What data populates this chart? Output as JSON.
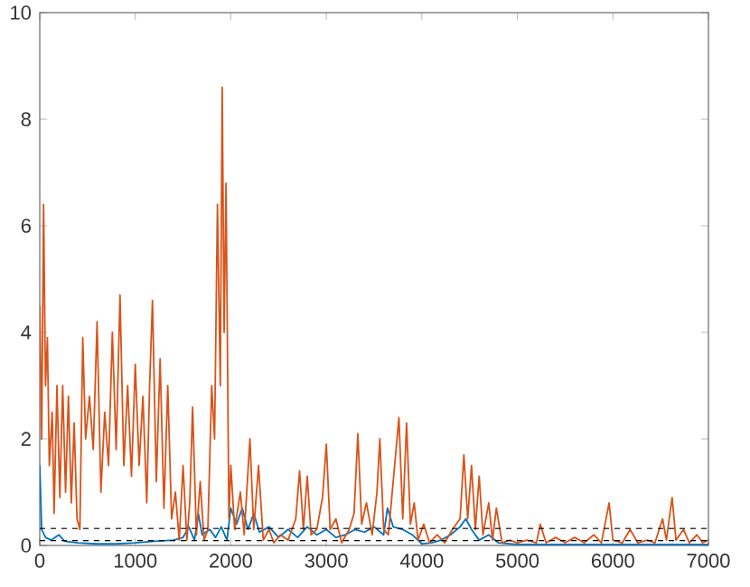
{
  "chart_data": {
    "type": "line",
    "xlim": [
      0,
      7000
    ],
    "ylim": [
      0,
      10
    ],
    "xticks": [
      0,
      1000,
      2000,
      3000,
      4000,
      5000,
      6000,
      7000
    ],
    "yticks": [
      0,
      2,
      4,
      6,
      8,
      10
    ],
    "grid": false,
    "marker": "none",
    "line_style": "solid",
    "series": [
      {
        "color": "#0072bd",
        "x": [
          0,
          20,
          60,
          120,
          200,
          260,
          400,
          600,
          800,
          1000,
          1200,
          1400,
          1500,
          1560,
          1620,
          1660,
          1700,
          1780,
          1840,
          1900,
          1960,
          2000,
          2060,
          2120,
          2180,
          2240,
          2300,
          2400,
          2500,
          2600,
          2700,
          2800,
          2900,
          3000,
          3100,
          3200,
          3300,
          3400,
          3500,
          3600,
          3640,
          3700,
          3800,
          3900,
          4000,
          4100,
          4200,
          4300,
          4400,
          4460,
          4520,
          4600,
          4700,
          4800,
          5000,
          5500,
          6000,
          6500,
          7000
        ],
        "values": [
          1.5,
          0.3,
          0.15,
          0.1,
          0.2,
          0.08,
          0.05,
          0.03,
          0.03,
          0.05,
          0.08,
          0.1,
          0.15,
          0.35,
          0.1,
          0.6,
          0.2,
          0.3,
          0.15,
          0.35,
          0.1,
          0.7,
          0.4,
          0.7,
          0.3,
          0.6,
          0.25,
          0.35,
          0.15,
          0.3,
          0.15,
          0.35,
          0.2,
          0.3,
          0.15,
          0.2,
          0.3,
          0.25,
          0.35,
          0.2,
          0.7,
          0.35,
          0.3,
          0.2,
          0.03,
          0.05,
          0.1,
          0.2,
          0.35,
          0.5,
          0.3,
          0.1,
          0.2,
          0.05,
          0.02,
          0.02,
          0.02,
          0.02,
          0.02
        ]
      },
      {
        "color": "#d95319",
        "x": [
          0,
          20,
          40,
          60,
          80,
          100,
          130,
          150,
          180,
          210,
          240,
          270,
          300,
          330,
          360,
          390,
          420,
          450,
          480,
          520,
          560,
          600,
          640,
          680,
          720,
          760,
          800,
          840,
          880,
          920,
          960,
          1000,
          1040,
          1080,
          1120,
          1150,
          1180,
          1220,
          1260,
          1300,
          1340,
          1380,
          1420,
          1460,
          1500,
          1540,
          1570,
          1600,
          1640,
          1680,
          1720,
          1760,
          1800,
          1830,
          1860,
          1890,
          1910,
          1930,
          1950,
          1980,
          2000,
          2040,
          2100,
          2140,
          2200,
          2240,
          2290,
          2340,
          2400,
          2450,
          2520,
          2600,
          2680,
          2720,
          2760,
          2800,
          2840,
          2900,
          2960,
          3000,
          3040,
          3100,
          3160,
          3240,
          3290,
          3330,
          3370,
          3420,
          3480,
          3530,
          3560,
          3600,
          3650,
          3700,
          3760,
          3800,
          3840,
          3880,
          3920,
          3960,
          4020,
          4080,
          4160,
          4240,
          4320,
          4400,
          4440,
          4480,
          4520,
          4560,
          4600,
          4640,
          4700,
          4740,
          4780,
          4840,
          4920,
          5000,
          5100,
          5200,
          5240,
          5300,
          5400,
          5500,
          5600,
          5700,
          5800,
          5880,
          5960,
          6000,
          6100,
          6180,
          6260,
          6360,
          6440,
          6520,
          6560,
          6620,
          6660,
          6740,
          6800,
          6880,
          6940,
          7000
        ],
        "values": [
          4.5,
          2.0,
          6.4,
          3.0,
          3.9,
          1.5,
          2.5,
          0.6,
          3.0,
          0.9,
          3.0,
          1.0,
          2.8,
          0.8,
          2.3,
          0.5,
          0.3,
          3.9,
          2.0,
          2.8,
          1.8,
          4.2,
          1.0,
          2.5,
          1.5,
          4.0,
          1.8,
          4.7,
          1.5,
          3.0,
          1.3,
          3.4,
          1.5,
          2.8,
          0.8,
          3.0,
          4.6,
          1.2,
          3.5,
          0.7,
          3.0,
          0.5,
          1.0,
          0.1,
          1.5,
          0.1,
          0.8,
          2.6,
          0.2,
          1.2,
          0.1,
          0.3,
          3.0,
          2.0,
          6.4,
          3.0,
          8.6,
          4.0,
          6.8,
          0.5,
          1.5,
          0.3,
          1.0,
          0.2,
          2.0,
          0.3,
          1.5,
          0.1,
          0.3,
          0.05,
          0.2,
          0.1,
          0.5,
          1.4,
          0.3,
          1.3,
          0.2,
          0.3,
          0.9,
          1.9,
          0.3,
          0.5,
          0.05,
          0.3,
          0.6,
          2.1,
          0.4,
          0.8,
          0.2,
          1.0,
          2.0,
          0.3,
          0.2,
          1.2,
          2.4,
          0.5,
          2.3,
          0.4,
          0.8,
          0.1,
          0.4,
          0.05,
          0.2,
          0.05,
          0.3,
          0.5,
          1.7,
          0.5,
          1.5,
          0.3,
          1.3,
          0.2,
          0.8,
          0.1,
          0.7,
          0.05,
          0.1,
          0.05,
          0.1,
          0.05,
          0.4,
          0.05,
          0.15,
          0.05,
          0.15,
          0.05,
          0.2,
          0.05,
          0.8,
          0.1,
          0.05,
          0.3,
          0.05,
          0.1,
          0.05,
          0.5,
          0.1,
          0.9,
          0.1,
          0.3,
          0.05,
          0.2,
          0.05,
          0.1
        ]
      }
    ],
    "ref_lines": [
      {
        "axis": "y",
        "value": 0.32,
        "color": "#000000",
        "line_style": "dashed"
      },
      {
        "axis": "y",
        "value": 0.09,
        "color": "#000000",
        "line_style": "dashed"
      }
    ]
  }
}
